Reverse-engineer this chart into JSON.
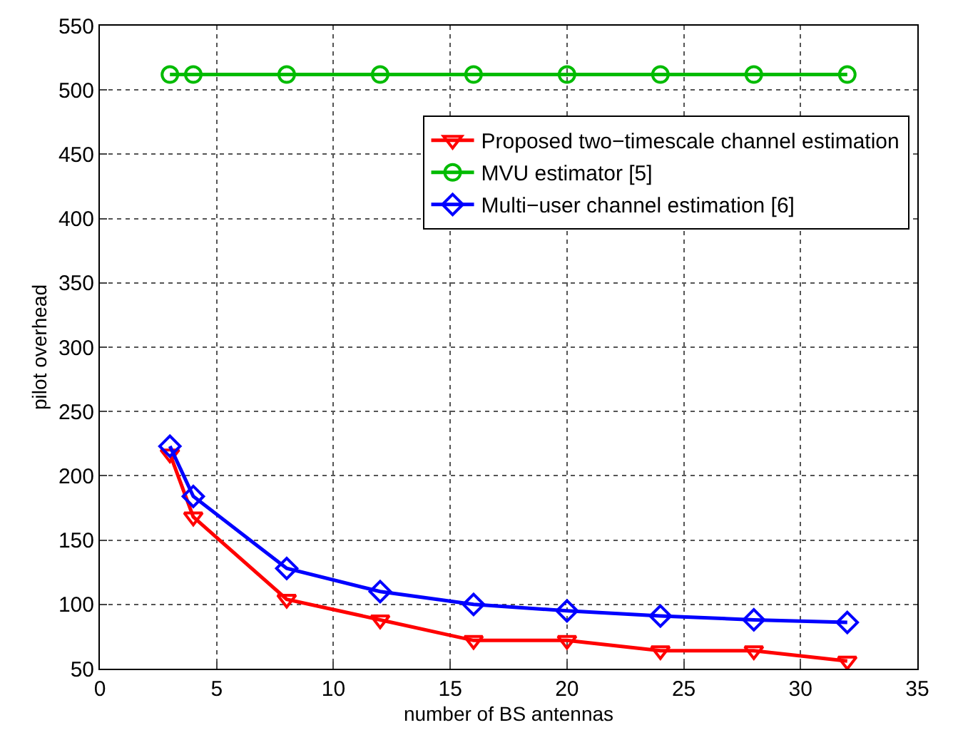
{
  "chart_data": {
    "type": "line",
    "xlabel": "number of BS antennas",
    "ylabel": "pilot overhead",
    "x": [
      3,
      4,
      8,
      12,
      16,
      20,
      24,
      28,
      32
    ],
    "series": [
      {
        "name": "Proposed two−timescale channel estimation",
        "color": "#ff0000",
        "marker": "triangle-down",
        "values": [
          217,
          168,
          104,
          88,
          72,
          72,
          64,
          64,
          56
        ]
      },
      {
        "name": "MVU estimator [5]",
        "color": "#00bb00",
        "marker": "circle",
        "values": [
          512,
          512,
          512,
          512,
          512,
          512,
          512,
          512,
          512
        ]
      },
      {
        "name": "Multi−user channel estimation [6]",
        "color": "#0000ff",
        "marker": "diamond",
        "values": [
          223,
          184,
          128,
          110,
          100,
          95,
          91,
          88,
          86
        ]
      }
    ],
    "xlim": [
      0,
      35
    ],
    "xticks": [
      0,
      5,
      10,
      15,
      20,
      25,
      30,
      35
    ],
    "ylim": [
      50,
      550
    ],
    "yticks": [
      50,
      100,
      150,
      200,
      250,
      300,
      350,
      400,
      450,
      500,
      550
    ],
    "grid": true,
    "legend": "top right",
    "line_style": "solid"
  }
}
